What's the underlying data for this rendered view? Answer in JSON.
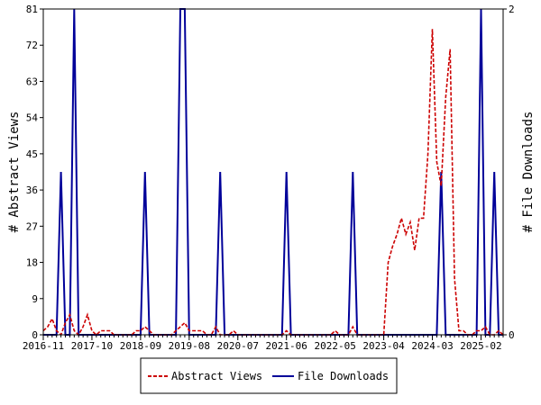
{
  "chart_data": {
    "type": "line",
    "x_tick_labels": [
      "2016-11",
      "2017-10",
      "2018-09",
      "2019-08",
      "2020-07",
      "2021-06",
      "2022-05",
      "2023-04",
      "2024-03",
      "2025-02"
    ],
    "y_left": {
      "label": "# Abstract Views",
      "range": [
        0,
        81
      ],
      "ticks": [
        0,
        9,
        18,
        27,
        36,
        45,
        54,
        63,
        72,
        81
      ]
    },
    "y_right": {
      "label": "# File Downloads",
      "range": [
        0,
        2
      ],
      "ticks": [
        0,
        2
      ]
    },
    "grid": false,
    "legend_position": "bottom",
    "series": [
      {
        "name": "Abstract Views",
        "axis": "left",
        "color": "#cc0000",
        "style": "dashed",
        "points": [
          [
            "2016-11",
            1
          ],
          [
            "2016-12",
            2
          ],
          [
            "2017-01",
            4
          ],
          [
            "2017-02",
            1
          ],
          [
            "2017-03",
            0
          ],
          [
            "2017-04",
            3
          ],
          [
            "2017-05",
            5
          ],
          [
            "2017-06",
            1
          ],
          [
            "2017-07",
            0
          ],
          [
            "2017-08",
            2
          ],
          [
            "2017-09",
            5
          ],
          [
            "2017-10",
            1
          ],
          [
            "2017-11",
            0
          ],
          [
            "2017-12",
            1
          ],
          [
            "2018-01",
            1
          ],
          [
            "2018-02",
            1
          ],
          [
            "2018-03",
            0
          ],
          [
            "2018-04",
            0
          ],
          [
            "2018-05",
            0
          ],
          [
            "2018-06",
            0
          ],
          [
            "2018-07",
            0
          ],
          [
            "2018-08",
            1
          ],
          [
            "2018-09",
            1
          ],
          [
            "2018-10",
            2
          ],
          [
            "2018-11",
            1
          ],
          [
            "2018-12",
            0
          ],
          [
            "2019-01",
            0
          ],
          [
            "2019-02",
            0
          ],
          [
            "2019-03",
            0
          ],
          [
            "2019-04",
            0
          ],
          [
            "2019-05",
            1
          ],
          [
            "2019-06",
            2
          ],
          [
            "2019-07",
            3
          ],
          [
            "2019-08",
            1
          ],
          [
            "2019-09",
            1
          ],
          [
            "2019-10",
            1
          ],
          [
            "2019-11",
            1
          ],
          [
            "2019-12",
            0
          ],
          [
            "2020-01",
            0
          ],
          [
            "2020-02",
            2
          ],
          [
            "2020-03",
            0
          ],
          [
            "2020-04",
            0
          ],
          [
            "2020-05",
            0
          ],
          [
            "2020-06",
            1
          ],
          [
            "2020-07",
            0
          ],
          [
            "2020-08",
            0
          ],
          [
            "2020-09",
            0
          ],
          [
            "2020-10",
            0
          ],
          [
            "2020-11",
            0
          ],
          [
            "2020-12",
            0
          ],
          [
            "2021-01",
            0
          ],
          [
            "2021-02",
            0
          ],
          [
            "2021-03",
            0
          ],
          [
            "2021-04",
            0
          ],
          [
            "2021-05",
            0
          ],
          [
            "2021-06",
            1
          ],
          [
            "2021-07",
            0
          ],
          [
            "2021-08",
            0
          ],
          [
            "2021-09",
            0
          ],
          [
            "2021-10",
            0
          ],
          [
            "2021-11",
            0
          ],
          [
            "2021-12",
            0
          ],
          [
            "2022-01",
            0
          ],
          [
            "2022-02",
            0
          ],
          [
            "2022-03",
            0
          ],
          [
            "2022-04",
            0
          ],
          [
            "2022-05",
            1
          ],
          [
            "2022-06",
            0
          ],
          [
            "2022-07",
            0
          ],
          [
            "2022-08",
            0
          ],
          [
            "2022-09",
            2
          ],
          [
            "2022-10",
            0
          ],
          [
            "2022-11",
            0
          ],
          [
            "2022-12",
            0
          ],
          [
            "2023-01",
            0
          ],
          [
            "2023-02",
            0
          ],
          [
            "2023-03",
            0
          ],
          [
            "2023-04",
            0
          ],
          [
            "2023-05",
            18
          ],
          [
            "2023-06",
            22
          ],
          [
            "2023-07",
            25
          ],
          [
            "2023-08",
            29
          ],
          [
            "2023-09",
            25
          ],
          [
            "2023-10",
            28
          ],
          [
            "2023-11",
            21
          ],
          [
            "2023-12",
            29
          ],
          [
            "2024-01",
            29
          ],
          [
            "2024-02",
            45
          ],
          [
            "2024-03",
            76
          ],
          [
            "2024-04",
            43
          ],
          [
            "2024-05",
            37
          ],
          [
            "2024-06",
            59
          ],
          [
            "2024-07",
            71
          ],
          [
            "2024-08",
            14
          ],
          [
            "2024-09",
            1
          ],
          [
            "2024-10",
            1
          ],
          [
            "2024-11",
            0
          ],
          [
            "2024-12",
            0
          ],
          [
            "2025-01",
            1
          ],
          [
            "2025-02",
            1
          ],
          [
            "2025-03",
            2
          ],
          [
            "2025-04",
            0
          ],
          [
            "2025-05",
            0
          ],
          [
            "2025-06",
            1
          ],
          [
            "2025-07",
            0
          ]
        ]
      },
      {
        "name": "File Downloads",
        "axis": "right",
        "color": "#000099",
        "style": "solid",
        "points": [
          [
            "2016-11",
            0
          ],
          [
            "2016-12",
            0
          ],
          [
            "2017-01",
            0
          ],
          [
            "2017-02",
            0
          ],
          [
            "2017-03",
            1
          ],
          [
            "2017-04",
            0
          ],
          [
            "2017-05",
            0
          ],
          [
            "2017-06",
            2
          ],
          [
            "2017-07",
            0
          ],
          [
            "2017-08",
            0
          ],
          [
            "2017-09",
            0
          ],
          [
            "2017-10",
            0
          ],
          [
            "2017-11",
            0
          ],
          [
            "2017-12",
            0
          ],
          [
            "2018-01",
            0
          ],
          [
            "2018-02",
            0
          ],
          [
            "2018-03",
            0
          ],
          [
            "2018-04",
            0
          ],
          [
            "2018-05",
            0
          ],
          [
            "2018-06",
            0
          ],
          [
            "2018-07",
            0
          ],
          [
            "2018-08",
            0
          ],
          [
            "2018-09",
            0
          ],
          [
            "2018-10",
            1
          ],
          [
            "2018-11",
            0
          ],
          [
            "2018-12",
            0
          ],
          [
            "2019-01",
            0
          ],
          [
            "2019-02",
            0
          ],
          [
            "2019-03",
            0
          ],
          [
            "2019-04",
            0
          ],
          [
            "2019-05",
            0
          ],
          [
            "2019-06",
            2
          ],
          [
            "2019-07",
            2
          ],
          [
            "2019-08",
            0
          ],
          [
            "2019-09",
            0
          ],
          [
            "2019-10",
            0
          ],
          [
            "2019-11",
            0
          ],
          [
            "2019-12",
            0
          ],
          [
            "2020-01",
            0
          ],
          [
            "2020-02",
            0
          ],
          [
            "2020-03",
            1
          ],
          [
            "2020-04",
            0
          ],
          [
            "2020-05",
            0
          ],
          [
            "2020-06",
            0
          ],
          [
            "2020-07",
            0
          ],
          [
            "2020-08",
            0
          ],
          [
            "2020-09",
            0
          ],
          [
            "2020-10",
            0
          ],
          [
            "2020-11",
            0
          ],
          [
            "2020-12",
            0
          ],
          [
            "2021-01",
            0
          ],
          [
            "2021-02",
            0
          ],
          [
            "2021-03",
            0
          ],
          [
            "2021-04",
            0
          ],
          [
            "2021-05",
            0
          ],
          [
            "2021-06",
            1
          ],
          [
            "2021-07",
            0
          ],
          [
            "2021-08",
            0
          ],
          [
            "2021-09",
            0
          ],
          [
            "2021-10",
            0
          ],
          [
            "2021-11",
            0
          ],
          [
            "2021-12",
            0
          ],
          [
            "2022-01",
            0
          ],
          [
            "2022-02",
            0
          ],
          [
            "2022-03",
            0
          ],
          [
            "2022-04",
            0
          ],
          [
            "2022-05",
            0
          ],
          [
            "2022-06",
            0
          ],
          [
            "2022-07",
            0
          ],
          [
            "2022-08",
            0
          ],
          [
            "2022-09",
            1
          ],
          [
            "2022-10",
            0
          ],
          [
            "2022-11",
            0
          ],
          [
            "2022-12",
            0
          ],
          [
            "2023-01",
            0
          ],
          [
            "2023-02",
            0
          ],
          [
            "2023-03",
            0
          ],
          [
            "2023-04",
            0
          ],
          [
            "2023-05",
            0
          ],
          [
            "2023-06",
            0
          ],
          [
            "2023-07",
            0
          ],
          [
            "2023-08",
            0
          ],
          [
            "2023-09",
            0
          ],
          [
            "2023-10",
            0
          ],
          [
            "2023-11",
            0
          ],
          [
            "2023-12",
            0
          ],
          [
            "2024-01",
            0
          ],
          [
            "2024-02",
            0
          ],
          [
            "2024-03",
            0
          ],
          [
            "2024-04",
            0
          ],
          [
            "2024-05",
            1
          ],
          [
            "2024-06",
            0
          ],
          [
            "2024-07",
            0
          ],
          [
            "2024-08",
            0
          ],
          [
            "2024-09",
            0
          ],
          [
            "2024-10",
            0
          ],
          [
            "2024-11",
            0
          ],
          [
            "2024-12",
            0
          ],
          [
            "2025-01",
            0
          ],
          [
            "2025-02",
            2
          ],
          [
            "2025-03",
            0
          ],
          [
            "2025-04",
            0
          ],
          [
            "2025-05",
            1
          ],
          [
            "2025-06",
            0
          ],
          [
            "2025-07",
            0
          ]
        ]
      }
    ]
  }
}
